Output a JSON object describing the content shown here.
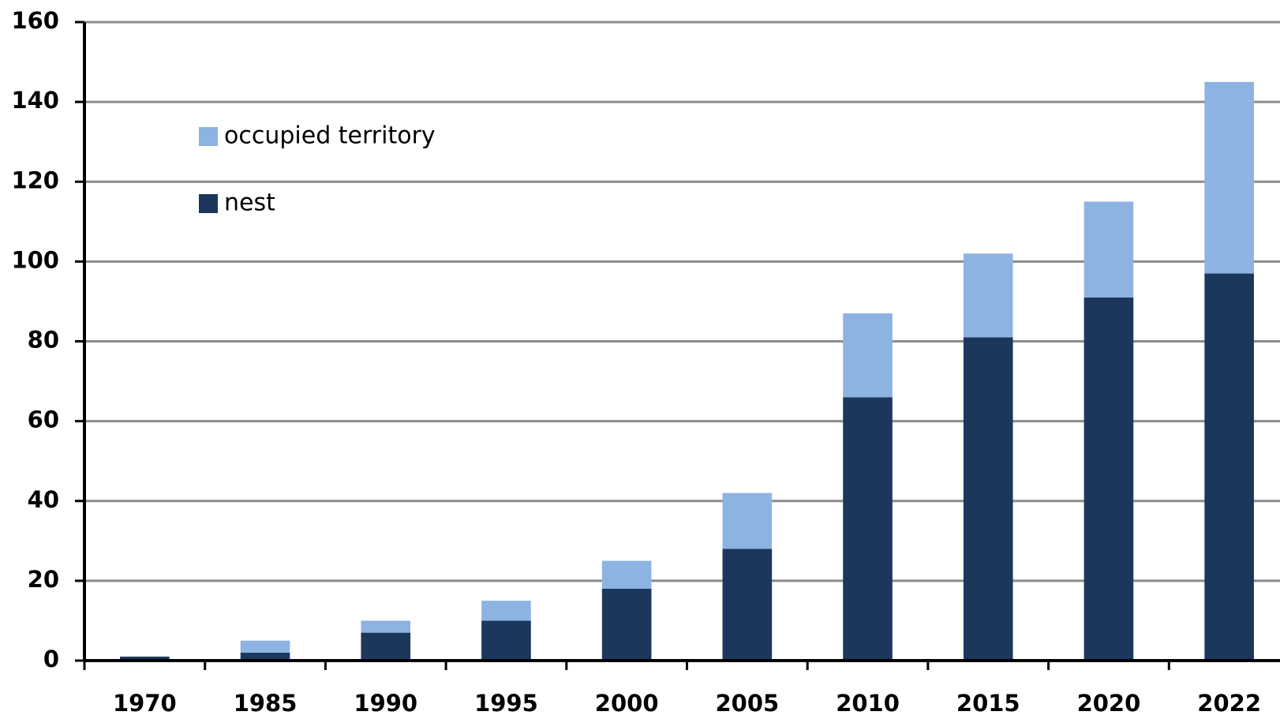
{
  "chart_data": {
    "type": "stacked_bar",
    "categories": [
      "1970",
      "1985",
      "1990",
      "1995",
      "2000",
      "2005",
      "2010",
      "2015",
      "2020",
      "2022"
    ],
    "series": [
      {
        "name": "nest",
        "color": "#1b375c",
        "values": [
          1,
          2,
          7,
          10,
          18,
          28,
          66,
          81,
          91,
          97
        ]
      },
      {
        "name": "occupied territory",
        "color": "#8db3e2",
        "values": [
          0,
          3,
          3,
          5,
          7,
          14,
          21,
          21,
          24,
          48
        ]
      }
    ],
    "ylim": [
      0,
      160
    ],
    "yticks": [
      0,
      20,
      40,
      60,
      80,
      100,
      120,
      140,
      160
    ],
    "grid": true
  }
}
